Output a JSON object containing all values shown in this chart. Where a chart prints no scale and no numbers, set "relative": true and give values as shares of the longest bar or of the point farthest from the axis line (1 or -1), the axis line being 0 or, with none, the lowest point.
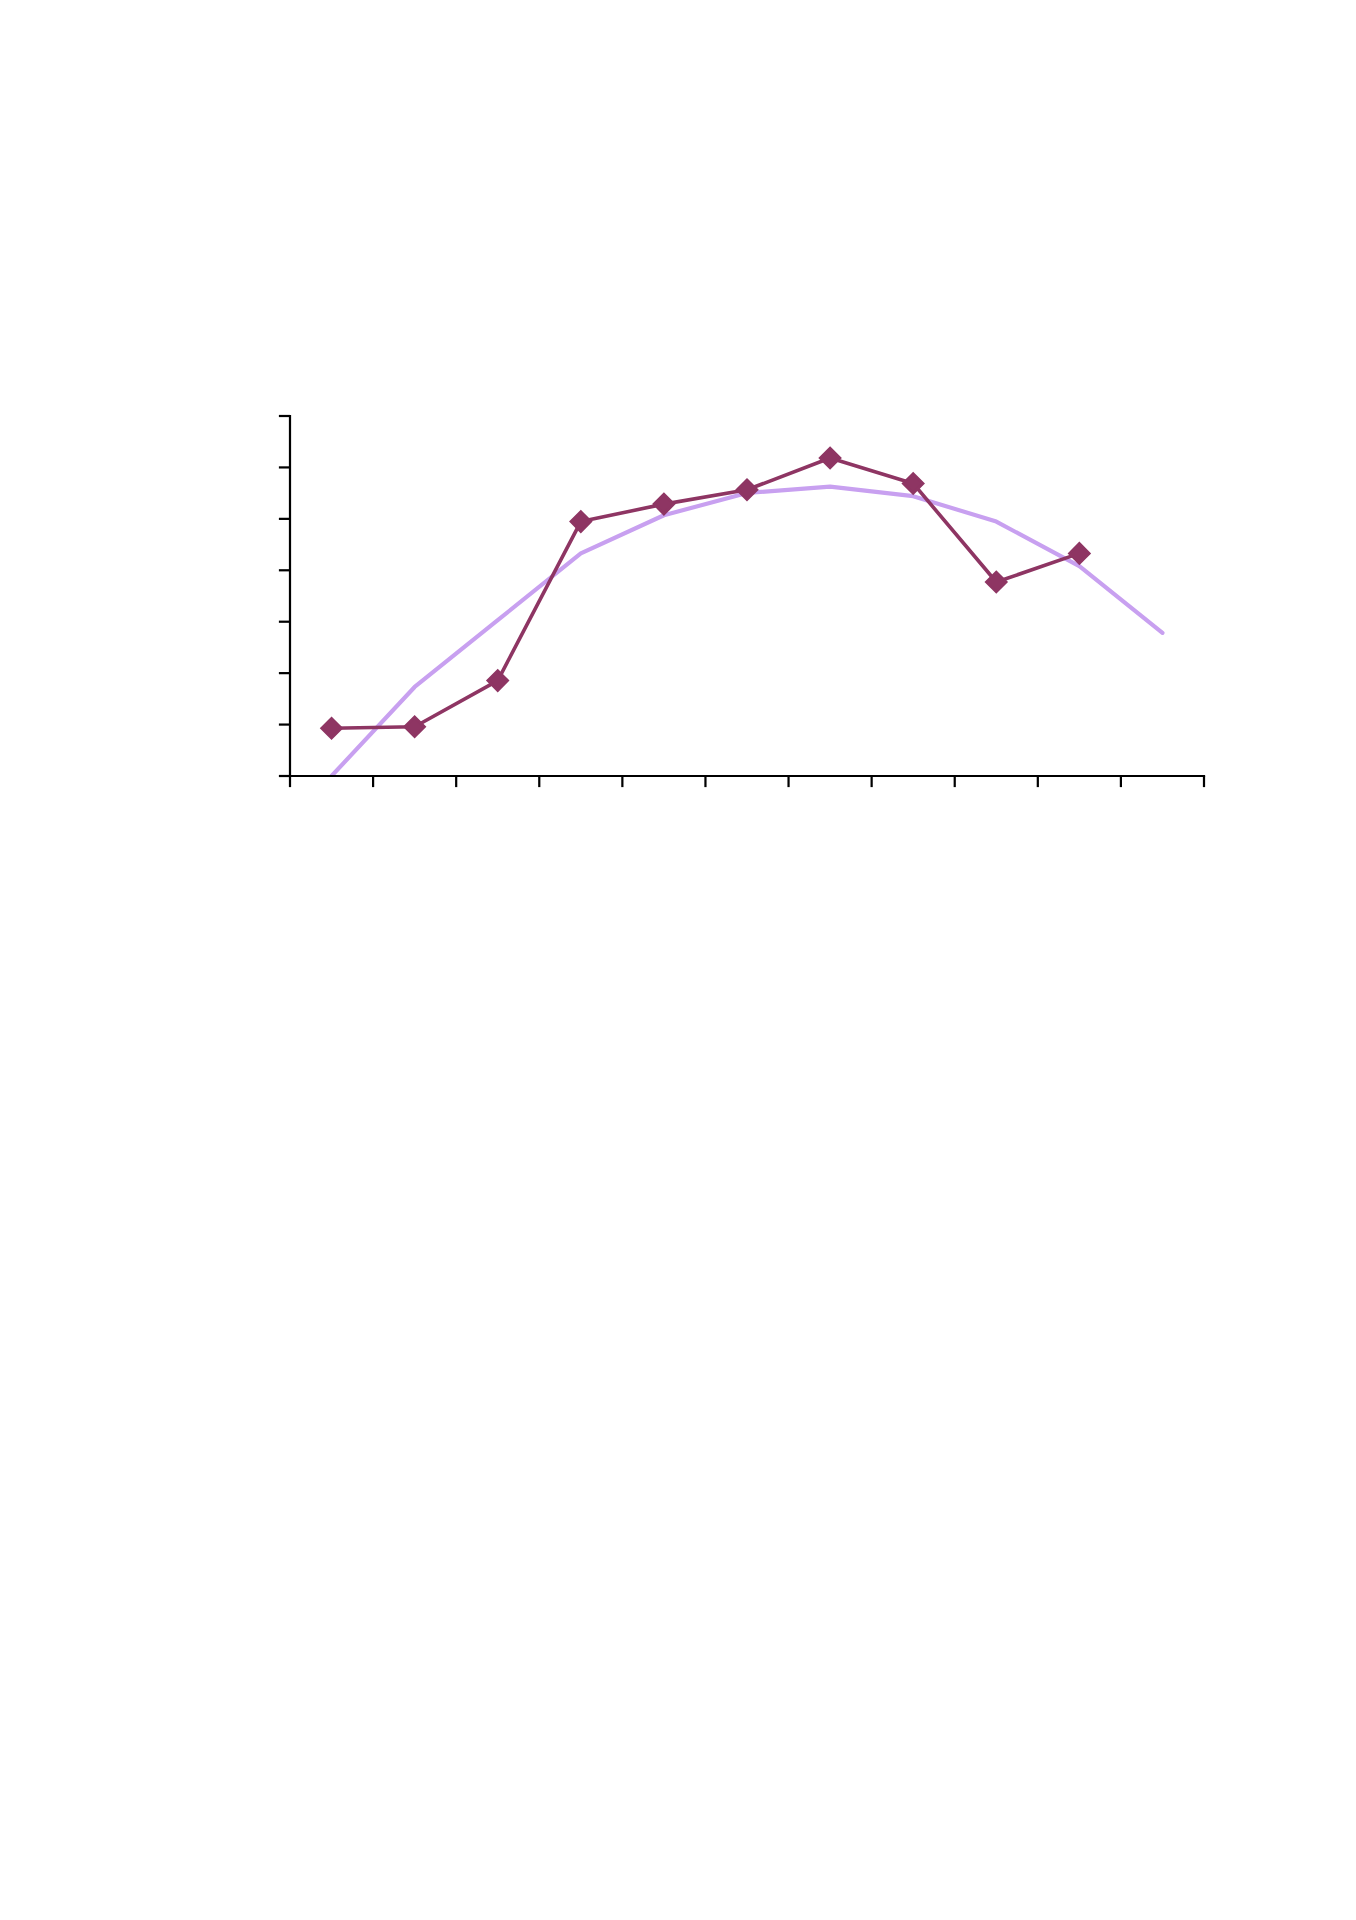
{
  "chart_data": {
    "type": "line",
    "relative": true,
    "marker": "diamond",
    "grid": false,
    "legend": false,
    "tick_labels": false,
    "categories": [
      null,
      null,
      null,
      null,
      null,
      null,
      null,
      null,
      null,
      null,
      null
    ],
    "series": [
      {
        "color": "#8e3563",
        "values": [
          0.15,
          0.155,
          0.3,
          0.8,
          0.855,
          0.9,
          1,
          0.92,
          0.61,
          0.7,
          null
        ]
      },
      {
        "type": "line",
        "marker": "none",
        "color": "#c8a0f0",
        "values": [
          0,
          0.28,
          0.49,
          0.7,
          0.82,
          0.89,
          0.91,
          0.88,
          0.8,
          0.66,
          0.45
        ]
      }
    ]
  }
}
